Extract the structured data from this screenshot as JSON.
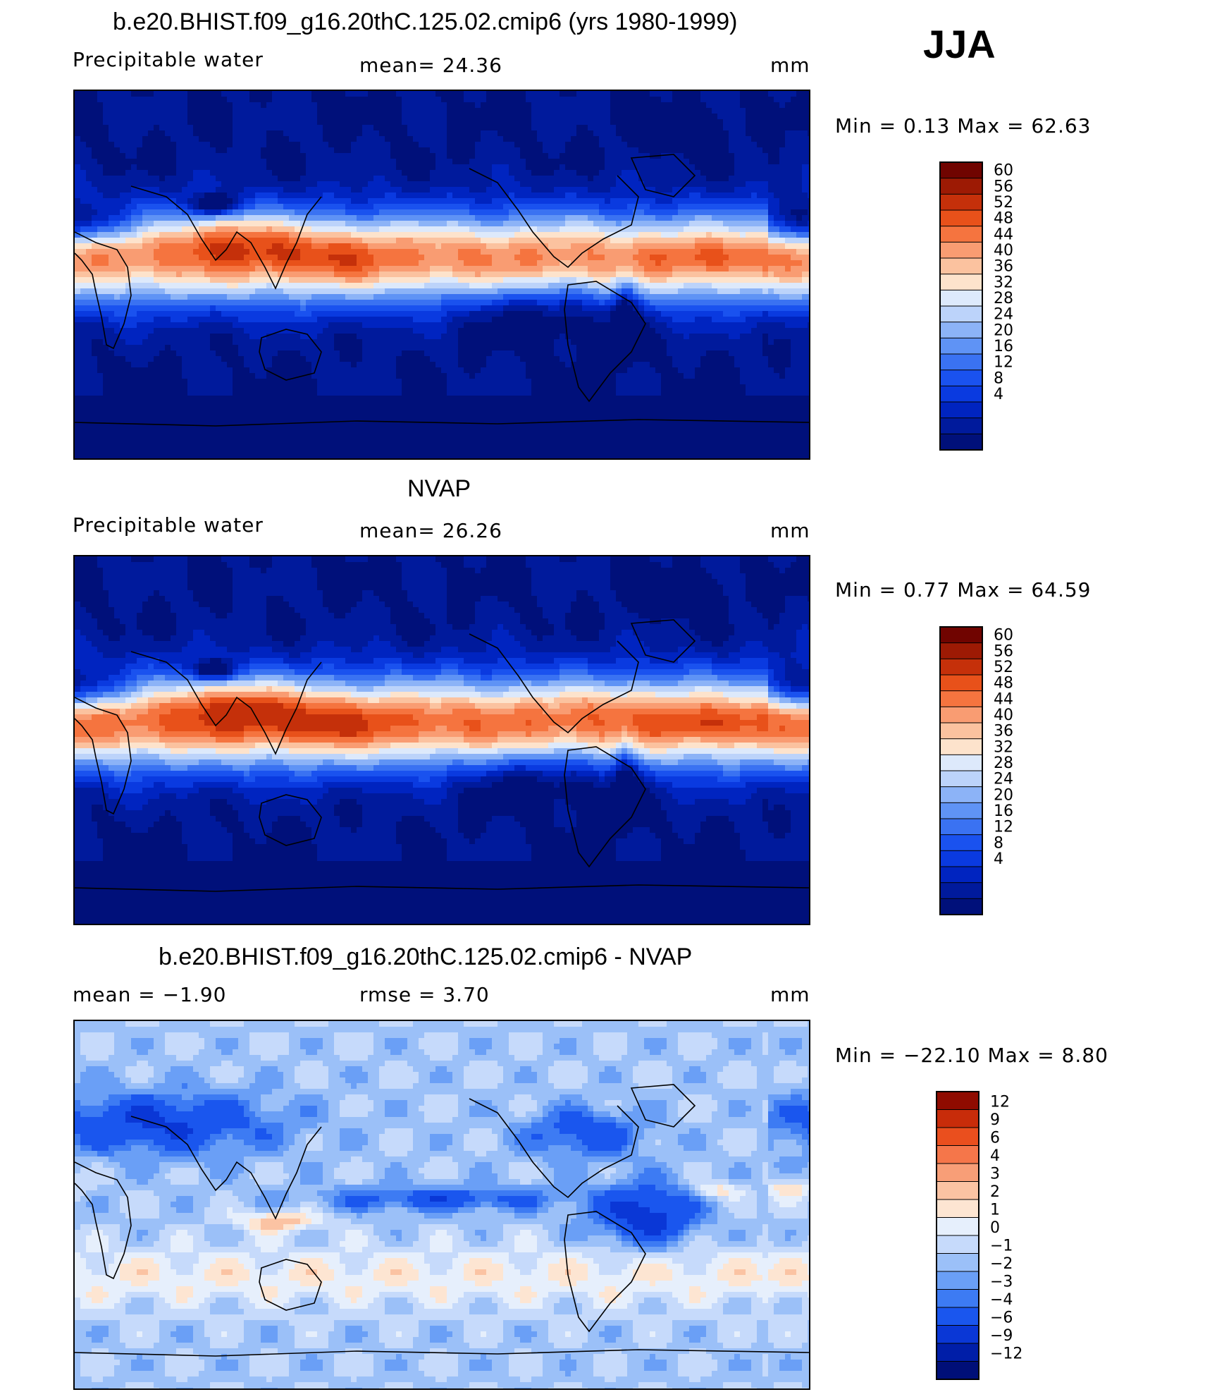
{
  "season": "JJA",
  "colors": {
    "blue_red_12": [
      "#001b8e",
      "#0024b8",
      "#0a3be0",
      "#1a56f2",
      "#3f79f5",
      "#6498f6",
      "#8fb6f8",
      "#b8d1f9",
      "#dce9fb",
      "#fde6d3",
      "#fcc7a7",
      "#fba37c",
      "#f97c4e",
      "#ee5421",
      "#c9300e",
      "#a31c06",
      "#7d0a00"
    ],
    "pw": [
      "#00107a",
      "#001a9c",
      "#0024c0",
      "#0a3ae0",
      "#1a52ef",
      "#3a72f2",
      "#5f93f5",
      "#8cb3f7",
      "#bcd3fa",
      "#dde9fb",
      "#fde3cc",
      "#fbc29f",
      "#f99c72",
      "#f5743f",
      "#e8511a",
      "#c5300a",
      "#9d1a04",
      "#700400"
    ],
    "diff": [
      "#000f78",
      "#001ea8",
      "#0a37d6",
      "#1a56ee",
      "#3d7bf3",
      "#6a9ff6",
      "#9bc0f8",
      "#c6dafb",
      "#e6effc",
      "#fde5d2",
      "#fbc3a3",
      "#f89e77",
      "#f5764a",
      "#ea4f1e",
      "#c82c0a",
      "#8f0b00"
    ]
  },
  "panels": [
    {
      "title": "b.e20.BHIST.f09_g16.20thC.125.02.cmip6 (yrs 1980-1999)",
      "left_label": "Precipitable water",
      "center_label": "mean=   24.36",
      "units": "mm",
      "minmax": "Min =    0.13 Max =   62.63",
      "colorbar_levels": [
        "60",
        "56",
        "52",
        "48",
        "44",
        "40",
        "36",
        "32",
        "28",
        "24",
        "20",
        "16",
        "12",
        "8",
        "4"
      ],
      "field_type": "model_pw"
    },
    {
      "title": "NVAP",
      "left_label": "Precipitable water",
      "center_label": "mean=   26.26",
      "units": "mm",
      "minmax": "Min =    0.77 Max =   64.59",
      "colorbar_levels": [
        "60",
        "56",
        "52",
        "48",
        "44",
        "40",
        "36",
        "32",
        "28",
        "24",
        "20",
        "16",
        "12",
        "8",
        "4"
      ],
      "field_type": "obs_pw"
    },
    {
      "title": "b.e20.BHIST.f09_g16.20thC.125.02.cmip6 - NVAP",
      "left_label": "mean =   −1.90",
      "center_label": "rmse =    3.70",
      "units": "mm",
      "minmax": "Min = −22.10 Max =    8.80",
      "colorbar_levels": [
        "12",
        "9",
        "6",
        "4",
        "3",
        "2",
        "1",
        "0",
        "−1",
        "−2",
        "−3",
        "−4",
        "−6",
        "−9",
        "−12"
      ],
      "field_type": "difference"
    }
  ],
  "chart_data": [
    {
      "type": "heatmap",
      "title": "b.e20.BHIST.f09_g16.20thC.125.02.cmip6 (yrs 1980-1999)",
      "variable": "Precipitable water",
      "units": "mm",
      "mean": 24.36,
      "min": 0.13,
      "max": 62.63,
      "contour_levels": [
        4,
        8,
        12,
        16,
        20,
        24,
        28,
        32,
        36,
        40,
        44,
        48,
        52,
        56,
        60
      ],
      "projection": "global cylindrical equidistant, centered on Pacific"
    },
    {
      "type": "heatmap",
      "title": "NVAP",
      "variable": "Precipitable water",
      "units": "mm",
      "mean": 26.26,
      "min": 0.77,
      "max": 64.59,
      "contour_levels": [
        4,
        8,
        12,
        16,
        20,
        24,
        28,
        32,
        36,
        40,
        44,
        48,
        52,
        56,
        60
      ],
      "projection": "global cylindrical equidistant, centered on Pacific"
    },
    {
      "type": "heatmap",
      "title": "b.e20.BHIST.f09_g16.20thC.125.02.cmip6 - NVAP",
      "units": "mm",
      "mean": -1.9,
      "rmse": 3.7,
      "min": -22.1,
      "max": 8.8,
      "contour_levels": [
        -12,
        -9,
        -6,
        -4,
        -3,
        -2,
        -1,
        0,
        1,
        2,
        3,
        4,
        6,
        9,
        12
      ],
      "projection": "global cylindrical equidistant, centered on Pacific"
    }
  ]
}
